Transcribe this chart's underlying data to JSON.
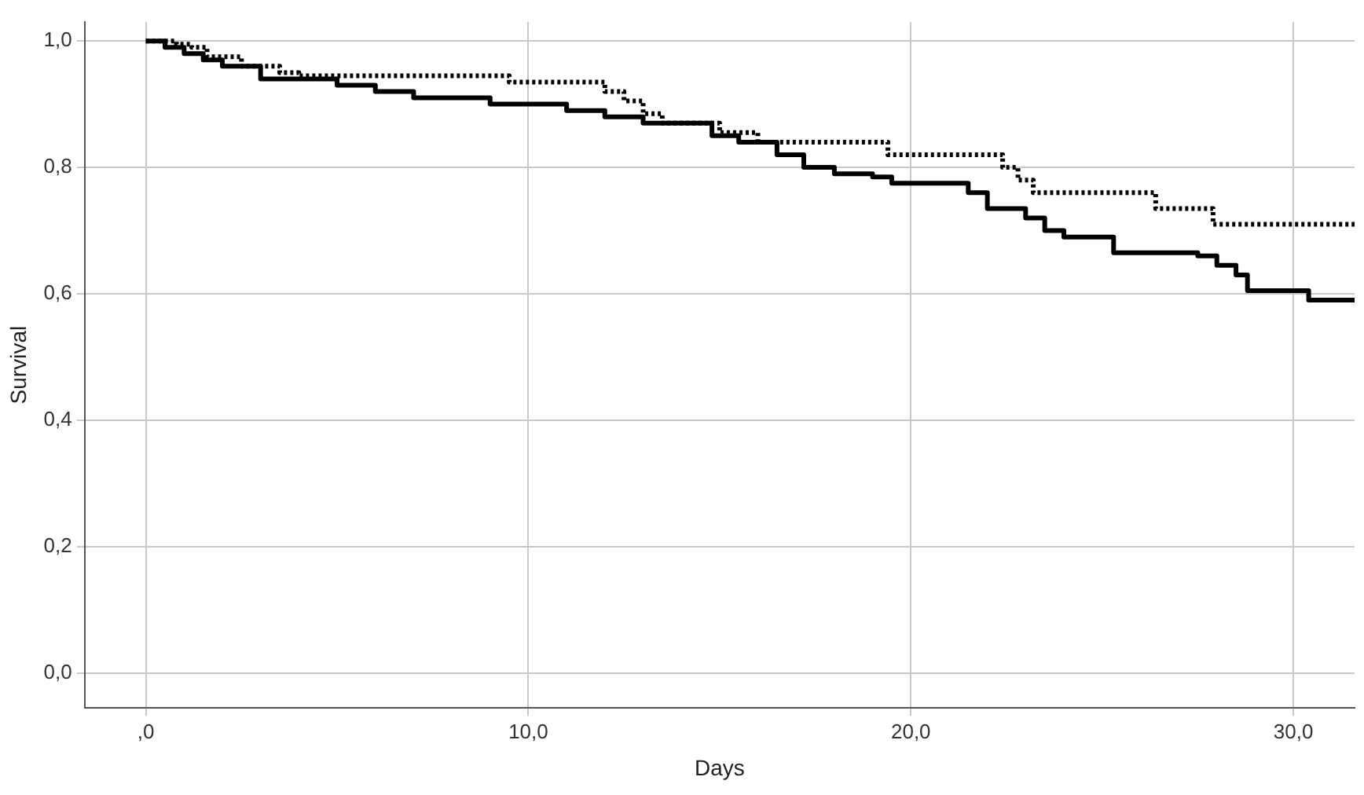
{
  "chart_data": {
    "type": "step",
    "xlabel": "Days",
    "ylabel": "Survival",
    "xlim": [
      -1.6,
      31.6
    ],
    "ylim": [
      -0.055,
      1.03
    ],
    "xticks": [
      {
        "value": 0,
        "label": ",0"
      },
      {
        "value": 10,
        "label": "10,0"
      },
      {
        "value": 20,
        "label": "20,0"
      },
      {
        "value": 30,
        "label": "30,0"
      }
    ],
    "yticks": [
      {
        "value": 0,
        "label": "0,0"
      },
      {
        "value": 0.2,
        "label": "0,2"
      },
      {
        "value": 0.4,
        "label": "0,4"
      },
      {
        "value": 0.6,
        "label": "0,6"
      },
      {
        "value": 0.8,
        "label": "0,8"
      },
      {
        "value": 1,
        "label": "1,0"
      }
    ],
    "grid": true,
    "legend": false,
    "marker": "none",
    "series": [
      {
        "color": "#000000",
        "line_style": "solid",
        "x": [
          0,
          0.5,
          1,
          1.5,
          2,
          3,
          5,
          6,
          7,
          9,
          11,
          12,
          13,
          14.8,
          15.5,
          16.5,
          17.2,
          18,
          19,
          19.5,
          21.5,
          22,
          23,
          23.5,
          24,
          25.3,
          27.5,
          28,
          28.5,
          28.8,
          30.4,
          31.6
        ],
        "values": [
          1,
          0.99,
          0.98,
          0.97,
          0.96,
          0.94,
          0.93,
          0.92,
          0.91,
          0.9,
          0.89,
          0.88,
          0.87,
          0.85,
          0.84,
          0.82,
          0.8,
          0.79,
          0.785,
          0.775,
          0.76,
          0.735,
          0.72,
          0.7,
          0.69,
          0.665,
          0.66,
          0.645,
          0.63,
          0.605,
          0.59,
          0.59
        ]
      },
      {
        "color": "#000000",
        "line_style": "dotted",
        "x": [
          0,
          0.8,
          1.2,
          1.6,
          2.5,
          3.5,
          4,
          9.5,
          12,
          12.5,
          13,
          13.5,
          15,
          16,
          19.4,
          22.4,
          22.8,
          23.2,
          26.4,
          27.9,
          31.6
        ],
        "values": [
          1,
          0.995,
          0.99,
          0.975,
          0.96,
          0.95,
          0.945,
          0.935,
          0.92,
          0.905,
          0.885,
          0.87,
          0.855,
          0.84,
          0.82,
          0.8,
          0.78,
          0.76,
          0.735,
          0.71,
          0.71
        ]
      }
    ]
  }
}
